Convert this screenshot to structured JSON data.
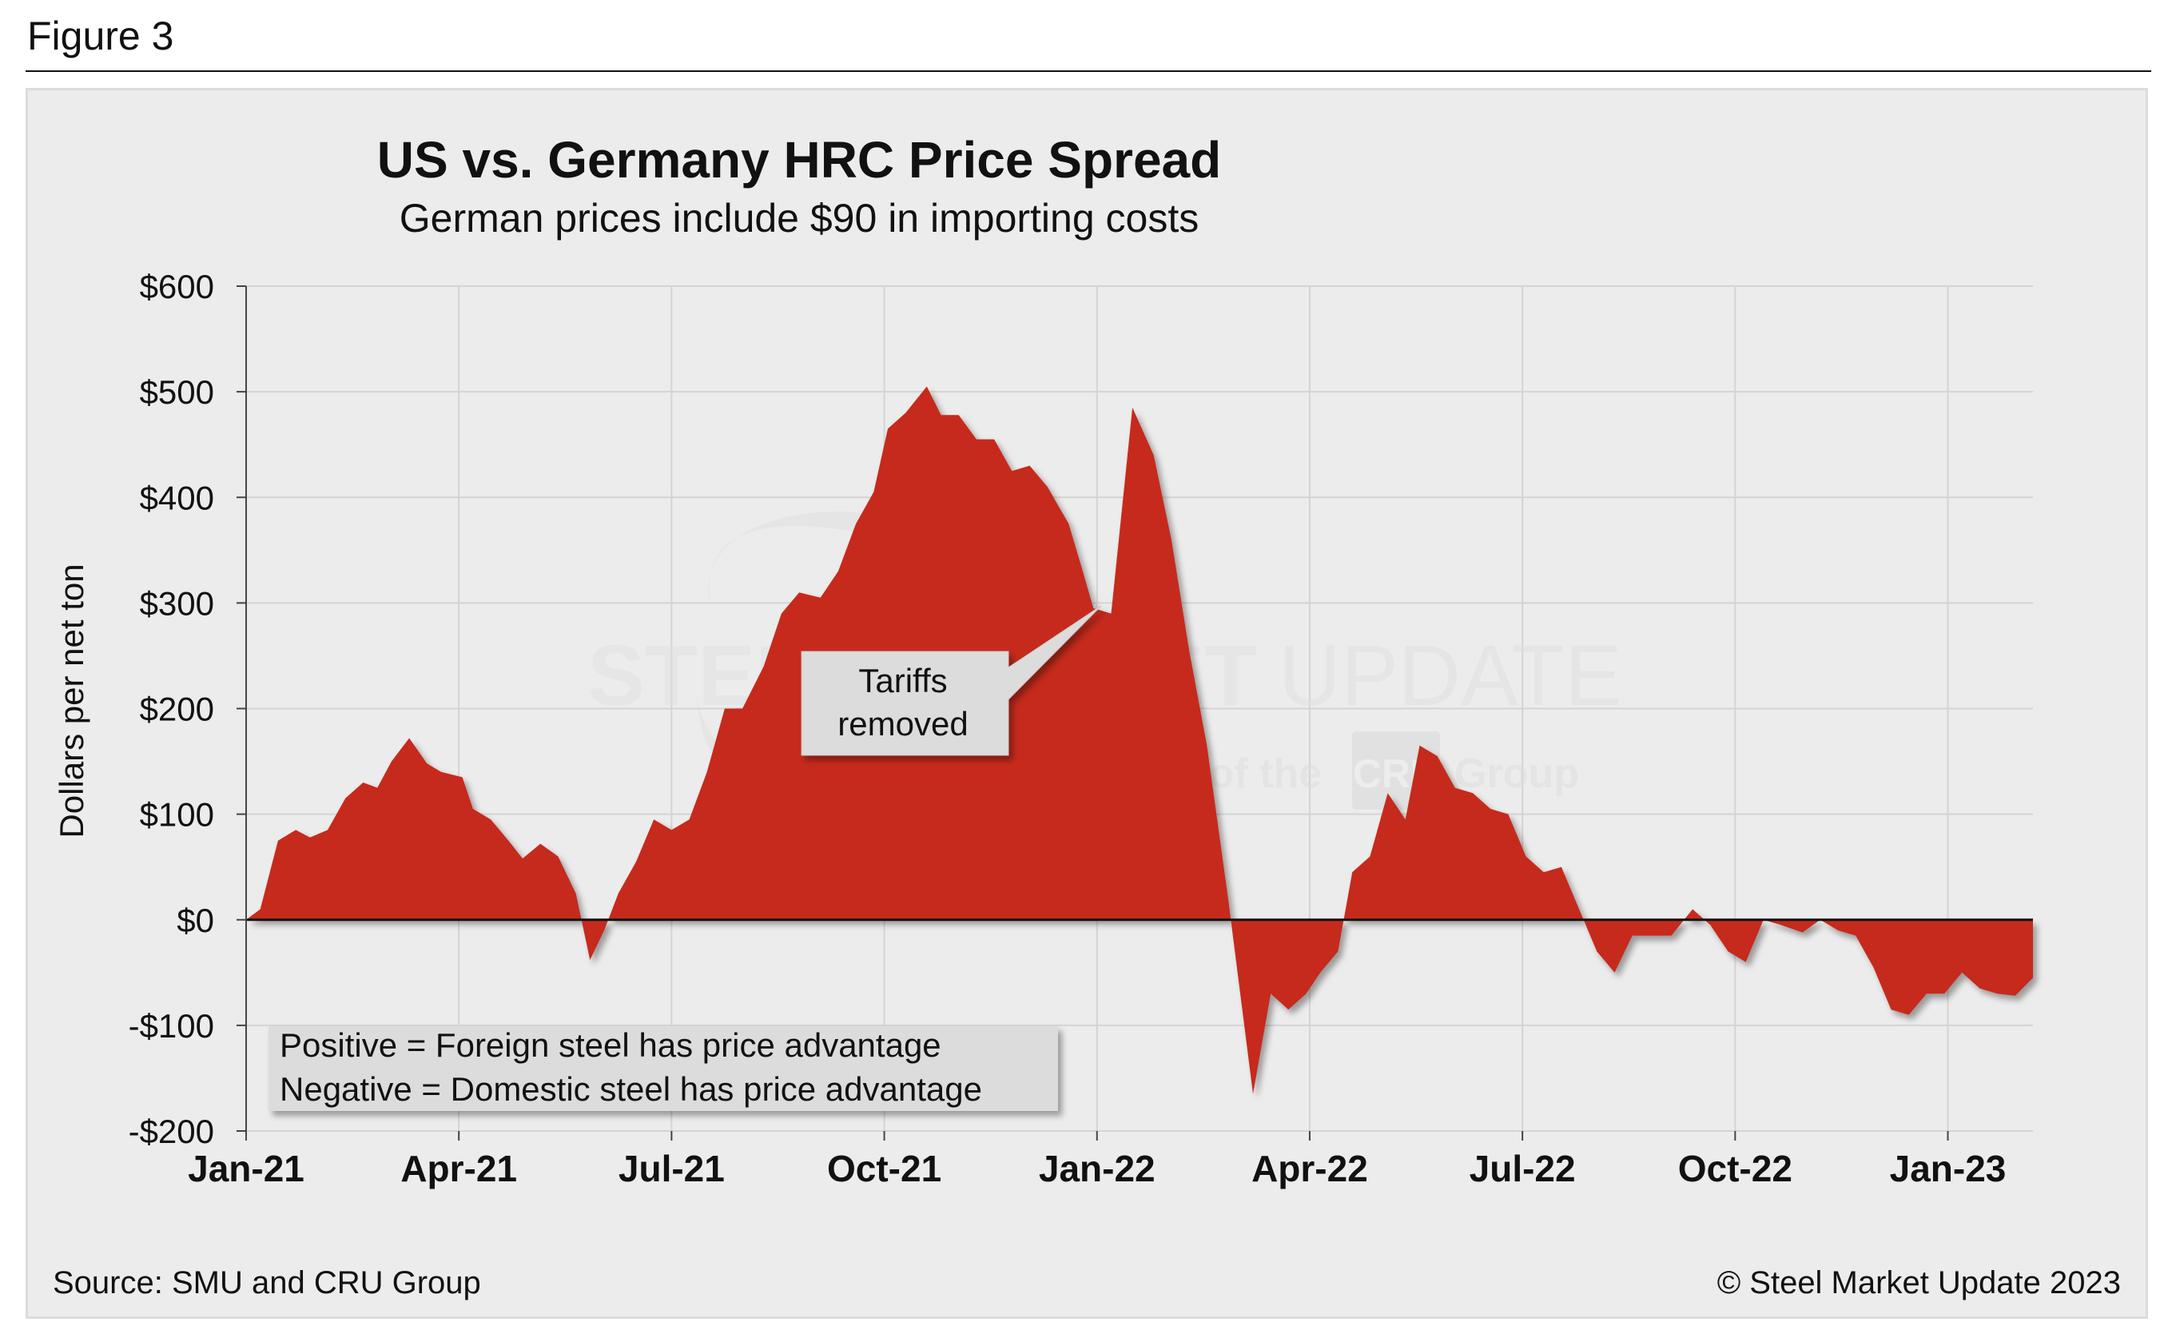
{
  "figure_label": "Figure 3",
  "watermark": {
    "brand": "STEEL MARKET UPDATE",
    "brand_bold": "STEEL MARKET",
    "brand_light": "UPDATE",
    "tagline_pre": "part of the",
    "tagline_logo": "CRU",
    "tagline_post": "Group"
  },
  "footer": {
    "source": "Source: SMU and CRU Group",
    "copyright": "© Steel Market Update 2023"
  },
  "colors": {
    "area": "#c62a1e",
    "background": "#ececec",
    "grid": "#d4d4d4"
  },
  "chart_data": {
    "type": "area",
    "title": "US vs. Germany HRC Price Spread",
    "subtitle": "German prices include $90 in importing costs",
    "ylabel": "Dollars per net ton",
    "xlabel": "",
    "ylim": [
      -200,
      600
    ],
    "yticks": [
      -200,
      -100,
      0,
      100,
      200,
      300,
      400,
      500,
      600
    ],
    "ytick_labels": [
      "-$200",
      "-$100",
      "$0",
      "$100",
      "$200",
      "$300",
      "$400",
      "$500",
      "$600"
    ],
    "xlim": [
      0,
      25.2
    ],
    "xticks": [
      0,
      3,
      6,
      9,
      12,
      15,
      18,
      21,
      24
    ],
    "xtick_labels": [
      "Jan-21",
      "Apr-21",
      "Jul-21",
      "Oct-21",
      "Jan-22",
      "Apr-22",
      "Jul-22",
      "Oct-22",
      "Jan-23"
    ],
    "grid": true,
    "series": [
      {
        "name": "US vs. Germany HRC price spread",
        "x": [
          0,
          0.2,
          0.45,
          0.7,
          0.9,
          1.15,
          1.4,
          1.65,
          1.85,
          2.05,
          2.3,
          2.55,
          2.75,
          3.05,
          3.2,
          3.45,
          3.7,
          3.9,
          4.15,
          4.4,
          4.65,
          4.85,
          5.05,
          5.25,
          5.5,
          5.75,
          6.0,
          6.25,
          6.5,
          6.75,
          7.0,
          7.3,
          7.55,
          7.8,
          8.1,
          8.35,
          8.6,
          8.85,
          9.05,
          9.3,
          9.6,
          9.8,
          10.05,
          10.3,
          10.55,
          10.8,
          11.05,
          11.3,
          11.6,
          11.8,
          11.95,
          12.2,
          12.5,
          12.8,
          13.05,
          13.3,
          13.55,
          13.85,
          14.2,
          14.45,
          14.7,
          14.95,
          15.15,
          15.4,
          15.6,
          15.85,
          16.1,
          16.35,
          16.55,
          16.8,
          17.05,
          17.3,
          17.55,
          17.8,
          18.05,
          18.3,
          18.55,
          18.8,
          19.05,
          19.3,
          19.55,
          19.85,
          20.1,
          20.4,
          20.65,
          20.9,
          21.15,
          21.4,
          21.65,
          21.95,
          22.2,
          22.45,
          22.7,
          22.95,
          23.2,
          23.45,
          23.7,
          23.95,
          24.2,
          24.45,
          24.7,
          24.95,
          25.2
        ],
        "values": [
          0,
          10,
          75,
          85,
          78,
          85,
          115,
          130,
          125,
          150,
          172,
          148,
          140,
          135,
          105,
          95,
          75,
          58,
          72,
          60,
          25,
          -38,
          -10,
          25,
          55,
          95,
          85,
          95,
          140,
          200,
          200,
          240,
          290,
          310,
          305,
          330,
          375,
          405,
          465,
          480,
          505,
          478,
          478,
          455,
          455,
          425,
          430,
          410,
          375,
          330,
          295,
          290,
          485,
          440,
          360,
          255,
          165,
          20,
          -165,
          -70,
          -85,
          -70,
          -50,
          -30,
          45,
          60,
          120,
          95,
          165,
          155,
          125,
          120,
          105,
          100,
          60,
          45,
          50,
          10,
          -30,
          -50,
          -15,
          -15,
          -15,
          10,
          -5,
          -30,
          -40,
          0,
          -5,
          -12,
          0,
          -10,
          -15,
          -45,
          -85,
          -90,
          -70,
          -70,
          -50,
          -65,
          -70,
          -72,
          -55
        ]
      }
    ],
    "annotations": [
      {
        "text_line1": "Tariffs",
        "text_line2": "removed",
        "points_to_x": 11.95,
        "points_to_y": 290
      }
    ],
    "legend_box": {
      "line1": "Positive = Foreign steel has price advantage",
      "line2": "Negative = Domestic steel has price advantage",
      "placement": "bottom-left"
    }
  }
}
